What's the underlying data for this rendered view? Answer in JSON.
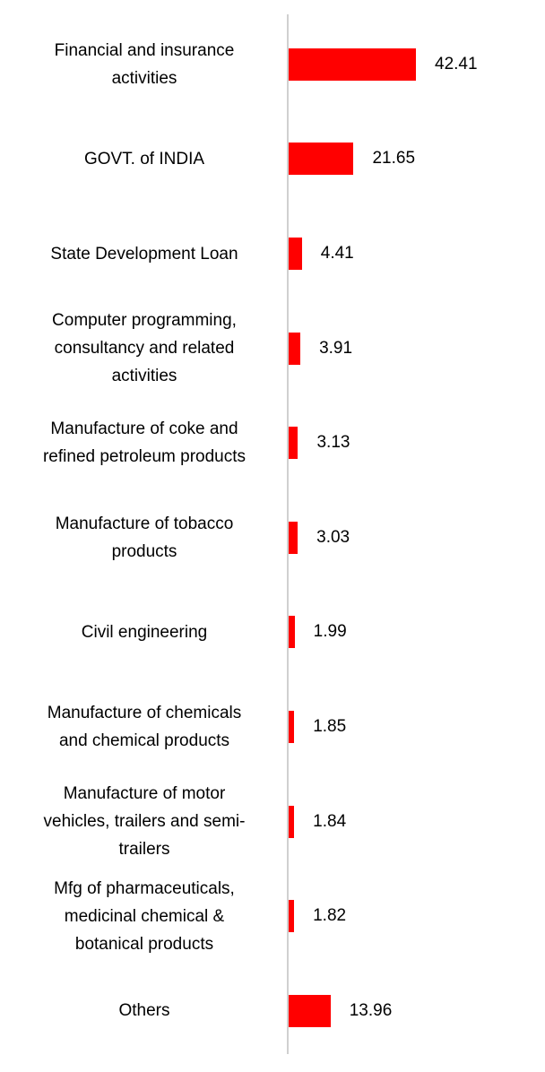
{
  "chart_data": {
    "type": "bar",
    "orientation": "horizontal",
    "bar_color": "#ff0000",
    "axis_color": "#d0d0d0",
    "categories": [
      [
        "Financial and insurance",
        "activities"
      ],
      [
        "GOVT. of INDIA"
      ],
      [
        "State Development Loan"
      ],
      [
        "Computer programming,",
        "consultancy and related",
        "activities"
      ],
      [
        "Manufacture of coke and",
        "refined petroleum products"
      ],
      [
        "Manufacture of tobacco",
        "products"
      ],
      [
        "Civil engineering"
      ],
      [
        "Manufacture of chemicals",
        "and chemical products"
      ],
      [
        "Manufacture of motor",
        "vehicles, trailers and semi-",
        "trailers"
      ],
      [
        "Mfg of pharmaceuticals,",
        "medicinal chemical &",
        "botanical products"
      ],
      [
        "Others"
      ]
    ],
    "values": [
      42.41,
      21.65,
      4.41,
      3.91,
      3.13,
      3.03,
      1.99,
      1.85,
      1.84,
      1.82,
      13.96
    ],
    "value_labels": [
      "42.41",
      "21.65",
      "4.41",
      "3.91",
      "3.13",
      "3.03",
      "1.99",
      "1.85",
      "1.84",
      "1.82",
      "13.96"
    ],
    "xlim": [
      0,
      42.41
    ]
  }
}
